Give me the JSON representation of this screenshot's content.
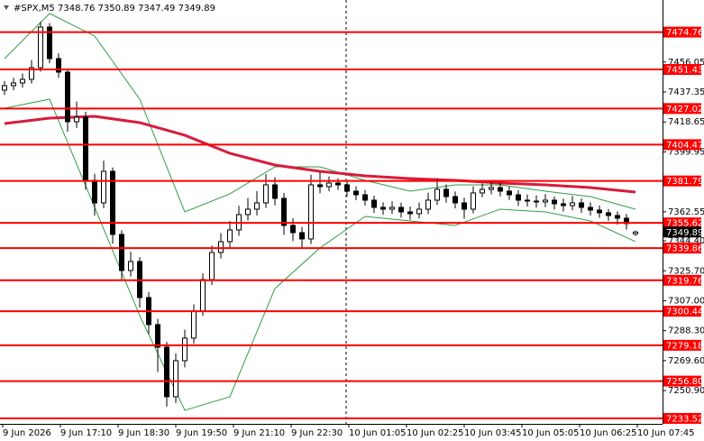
{
  "chart_data": {
    "type": "candlestick",
    "title": "#SPX,M5",
    "header_values": "7348.76 7350.89 7347.49 7349.89",
    "time_labels": [
      "9 Jun 2026",
      "9 Jun 17:10",
      "9 Jun 18:30",
      "9 Jun 19:50",
      "9 Jun 21:10",
      "9 Jun 22:30",
      "10 Jun 01:05",
      "10 Jun 02:25",
      "10 Jun 03:45",
      "10 Jun 05:05",
      "10 Jun 06:25",
      "10 Jun 07:45"
    ],
    "candles": [
      [
        7438.5,
        7444.1,
        7435.7,
        7441.31
      ],
      [
        7441.31,
        7446.2,
        7438.4,
        7442.99
      ],
      [
        7442.99,
        7449.0,
        7440.1,
        7445.25
      ],
      [
        7445.25,
        7457.3,
        7442.6,
        7452.57
      ],
      [
        7452.57,
        7481.2,
        7450.1,
        7477.91
      ],
      [
        7477.91,
        7480.4,
        7455.3,
        7458.2
      ],
      [
        7458.2,
        7461.5,
        7446.2,
        7449.75
      ],
      [
        7449.75,
        7452.1,
        7412.6,
        7418.78
      ],
      [
        7418.78,
        7431.4,
        7414.9,
        7421.6
      ],
      [
        7421.6,
        7425.0,
        7376.4,
        7382.18
      ],
      [
        7382.18,
        7386.3,
        7360.2,
        7368.1
      ],
      [
        7368.1,
        7394.5,
        7364.8,
        7387.81
      ],
      [
        7387.81,
        7390.2,
        7342.7,
        7348.39
      ],
      [
        7348.39,
        7351.0,
        7319.4,
        7325.87
      ],
      [
        7325.87,
        7337.6,
        7322.1,
        7331.5
      ],
      [
        7331.5,
        7334.2,
        7302.6,
        7308.98
      ],
      [
        7308.98,
        7312.4,
        7286.3,
        7292.08
      ],
      [
        7292.08,
        7295.7,
        7262.5,
        7278.01
      ],
      [
        7278.01,
        7281.3,
        7240.8,
        7247.04
      ],
      [
        7247.04,
        7274.2,
        7243.1,
        7269.56
      ],
      [
        7269.56,
        7288.9,
        7265.4,
        7283.64
      ],
      [
        7283.64,
        7304.7,
        7280.2,
        7300.53
      ],
      [
        7300.53,
        7324.1,
        7297.6,
        7320.24
      ],
      [
        7320.24,
        7341.5,
        7316.8,
        7337.13
      ],
      [
        7337.13,
        7349.2,
        7333.4,
        7343.89
      ],
      [
        7343.89,
        7356.8,
        7340.1,
        7351.21
      ],
      [
        7351.21,
        7366.3,
        7347.5,
        7360.78
      ],
      [
        7360.78,
        7371.2,
        7357.1,
        7364.16
      ],
      [
        7364.16,
        7375.4,
        7360.3,
        7368.1
      ],
      [
        7368.1,
        7386.1,
        7364.9,
        7379.36
      ],
      [
        7379.36,
        7384.2,
        7366.5,
        7370.92
      ],
      [
        7370.92,
        7374.3,
        7348.1,
        7354.02
      ],
      [
        7354.02,
        7358.6,
        7344.2,
        7349.52
      ],
      [
        7349.52,
        7353.1,
        7339.8,
        7345.58
      ],
      [
        7345.58,
        7385.7,
        7342.4,
        7379.36
      ],
      [
        7379.36,
        7387.2,
        7374.1,
        7378.24
      ],
      [
        7378.24,
        7384.6,
        7375.3,
        7380.49
      ],
      [
        7380.49,
        7383.4,
        7376.2,
        7379.36
      ],
      [
        7379.36,
        7382.1,
        7372.3,
        7375.42
      ],
      [
        7375.42,
        7378.5,
        7369.8,
        7373.17
      ],
      [
        7373.17,
        7376.2,
        7366.4,
        7369.79
      ],
      [
        7369.79,
        7372.6,
        7361.9,
        7365.29
      ],
      [
        7365.29,
        7368.4,
        7360.7,
        7364.16
      ],
      [
        7364.16,
        7369.1,
        7361.2,
        7365.29
      ],
      [
        7365.29,
        7368.3,
        7358.9,
        7362.47
      ],
      [
        7362.47,
        7365.8,
        7357.6,
        7361.35
      ],
      [
        7361.35,
        7368.2,
        7358.4,
        7364.16
      ],
      [
        7364.16,
        7374.5,
        7361.1,
        7369.79
      ],
      [
        7369.79,
        7383.4,
        7366.8,
        7376.55
      ],
      [
        7376.55,
        7379.6,
        7368.3,
        7372.04
      ],
      [
        7372.04,
        7375.2,
        7364.7,
        7368.1
      ],
      [
        7368.1,
        7371.3,
        7358.2,
        7364.16
      ],
      [
        7364.16,
        7378.4,
        7361.5,
        7374.3
      ],
      [
        7374.3,
        7380.2,
        7371.6,
        7376.55
      ],
      [
        7376.55,
        7381.9,
        7373.4,
        7377.68
      ],
      [
        7377.68,
        7380.5,
        7372.2,
        7375.42
      ],
      [
        7375.42,
        7378.3,
        7369.9,
        7373.17
      ],
      [
        7373.17,
        7376.1,
        7366.2,
        7369.79
      ],
      [
        7369.79,
        7373.4,
        7365.8,
        7369.23
      ],
      [
        7369.23,
        7372.8,
        7365.1,
        7368.67
      ],
      [
        7368.67,
        7373.6,
        7365.4,
        7369.79
      ],
      [
        7369.79,
        7372.2,
        7363.9,
        7367.54
      ],
      [
        7367.54,
        7370.8,
        7362.7,
        7366.41
      ],
      [
        7366.41,
        7372.4,
        7363.5,
        7368.1
      ],
      [
        7368.1,
        7370.9,
        7361.8,
        7365.29
      ],
      [
        7365.29,
        7368.4,
        7360.2,
        7363.6
      ],
      [
        7363.6,
        7366.5,
        7358.7,
        7361.91
      ],
      [
        7361.91,
        7364.3,
        7356.9,
        7360.22
      ],
      [
        7360.22,
        7362.8,
        7354.6,
        7358.53
      ],
      [
        7358.53,
        7361.2,
        7351.4,
        7355.15
      ],
      [
        7348.76,
        7350.89,
        7347.49,
        7349.89
      ]
    ],
    "overlay_x": [
      0,
      5,
      10,
      15,
      20,
      25,
      30,
      35,
      40,
      45,
      50,
      55,
      60,
      65,
      70
    ],
    "ma": {
      "color": "#d81b3c",
      "values": [
        7417.66,
        7421.04,
        7422.16,
        7418.22,
        7410.34,
        7399.07,
        7391.75,
        7387.81,
        7385.0,
        7383.31,
        7382.18,
        7380.49,
        7379.36,
        7377.68,
        7374.86
      ]
    },
    "bands": {
      "color": "#2e9e44",
      "upper": [
        7458.2,
        7486.35,
        7472.28,
        7432.86,
        7362.47,
        7373.73,
        7390.63,
        7390.63,
        7382.18,
        7375.42,
        7379.36,
        7379.36,
        7375.42,
        7372.04,
        7364.16
      ],
      "lower": [
        7427.23,
        7432.86,
        7365.29,
        7297.72,
        7238.59,
        7247.04,
        7314.61,
        7339.95,
        7359.66,
        7356.84,
        7354.02,
        7364.16,
        7362.47,
        7356.84,
        7343.89
      ]
    },
    "levels": {
      "color": "#ff0000",
      "values": [
        7474.76,
        7451.43,
        7427.02,
        7404.47,
        7381.79,
        7355.62,
        7339.86,
        7319.76,
        7300.44,
        7279.18,
        {
          "value": 7256.8,
          "label": "7256.80"
        },
        7233.52
      ]
    },
    "last_price": 7349.89,
    "ylim": [
      7230.1,
      7494.8
    ],
    "yticks": [
      7456.05,
      7437.35,
      7418.65,
      7399.95,
      7362.55,
      {
        "value": 7344.4,
        "label": "7344.40"
      },
      {
        "value": 7325.7,
        "label": "7325.70"
      },
      {
        "value": 7307,
        "label": "7307.00"
      },
      {
        "value": 7288.3,
        "label": "7288.30"
      },
      {
        "value": 7269.6,
        "label": "7269.60"
      },
      {
        "value": 7250.9,
        "label": "7250.90"
      }
    ]
  }
}
